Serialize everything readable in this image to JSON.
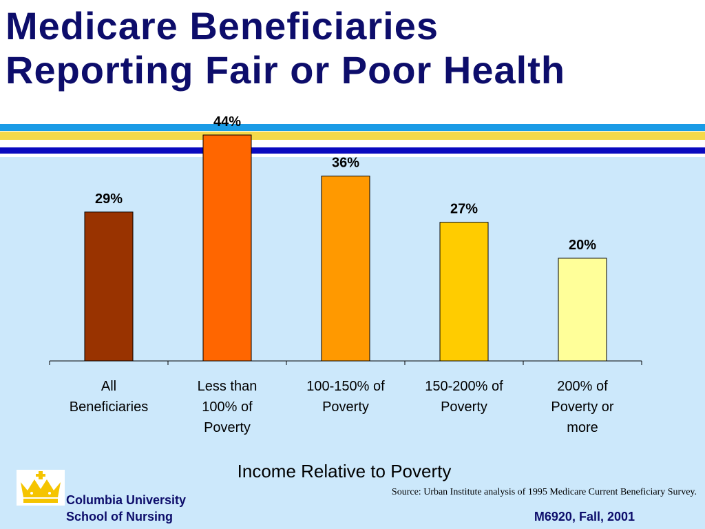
{
  "slide": {
    "title_line1": "Medicare Beneficiaries",
    "title_line2": "Reporting Fair or Poor Health",
    "source": "Source: Urban Institute analysis of 1995 Medicare Current Beneficiary Survey.",
    "footer_org_line1": "Columbia University",
    "footer_org_line2": "School of Nursing",
    "footer_course": "M6920, Fall, 2001",
    "logo_icon": "crown-icon"
  },
  "colors": {
    "title": "#0d0d6b",
    "stripe_blue": "#1a9be6",
    "stripe_yellow": "#f5d94a",
    "stripe_navy": "#0a0abf",
    "panel_bg": "#cce8fb",
    "crown": "#f5c400"
  },
  "chart_data": {
    "type": "bar",
    "title": "",
    "xlabel": "Income Relative to Poverty",
    "ylabel": "",
    "ylim": [
      0,
      50
    ],
    "grid": false,
    "categories": [
      [
        "All",
        "Beneficiaries"
      ],
      [
        "Less than",
        "100% of",
        "Poverty"
      ],
      [
        "100-150% of",
        "Poverty"
      ],
      [
        "150-200% of",
        "Poverty"
      ],
      [
        "200% of",
        "Poverty or",
        "more"
      ]
    ],
    "values": [
      29,
      44,
      36,
      27,
      20
    ],
    "data_labels": [
      "29%",
      "44%",
      "36%",
      "27%",
      "20%"
    ],
    "bar_colors": [
      "#993300",
      "#ff6600",
      "#ff9900",
      "#ffcc00",
      "#ffff99"
    ]
  }
}
